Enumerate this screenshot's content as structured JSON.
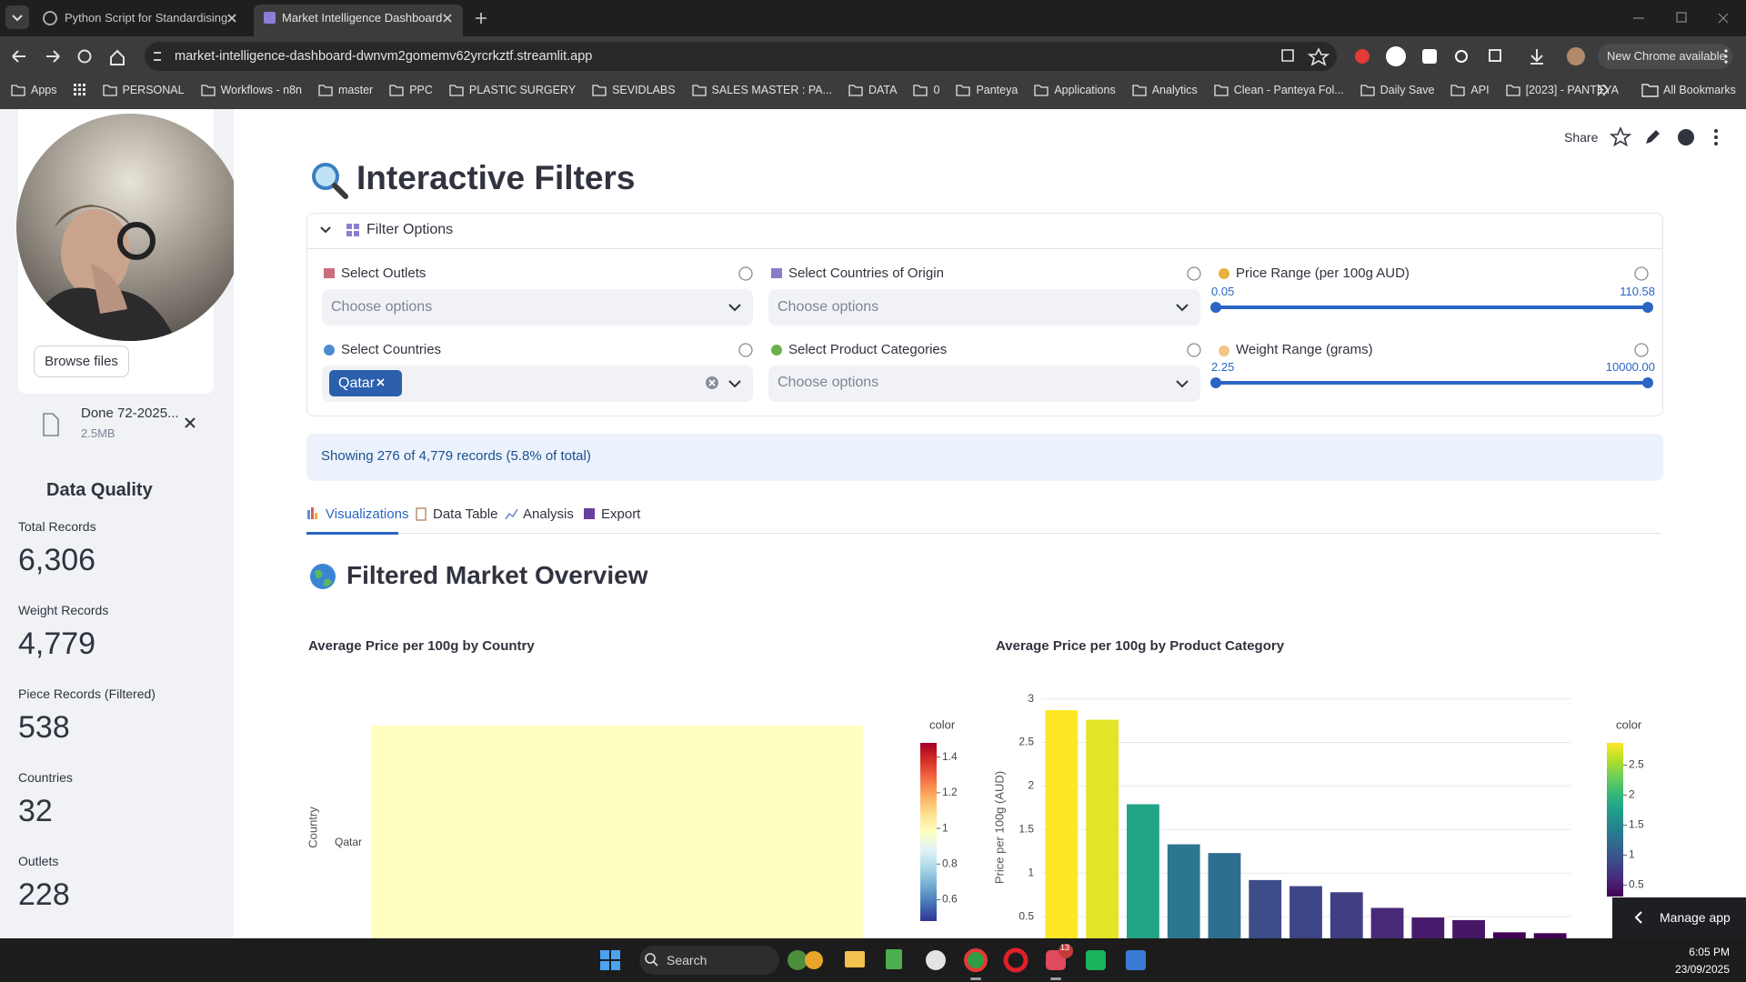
{
  "browser": {
    "tabs": [
      "Python Script for Standardising",
      "Market Intelligence Dashboard"
    ],
    "url": "market-intelligence-dashboard-dwnvm2gomemv62yrcrkztf.streamlit.app",
    "update_button": "New Chrome available",
    "bookmarks": [
      "Apps",
      "PERSONAL",
      "Workflows - n8n",
      "master",
      "PPC",
      "PLASTIC SURGERY",
      "SEVIDLABS",
      "SALES MASTER : PA...",
      "DATA",
      "0",
      "Panteya",
      "Applications",
      "Analytics",
      "Clean - Panteya Fol...",
      "Daily Save",
      "API",
      "[2023] - PANTEYA"
    ],
    "all_bookmarks": "All Bookmarks"
  },
  "sidebar": {
    "upload_button": "Browse files",
    "file": {
      "name": "Done 72-2025...",
      "size": "2.5MB"
    },
    "section_title": "Data Quality",
    "metrics": [
      {
        "label": "Total Records",
        "value": "6,306"
      },
      {
        "label": "Weight Records",
        "value": "4,779"
      },
      {
        "label": "Piece Records (Filtered)",
        "value": "538"
      },
      {
        "label": "Countries",
        "value": "32"
      },
      {
        "label": "Outlets",
        "value": "228"
      }
    ]
  },
  "toolbar": {
    "share": "Share"
  },
  "page": {
    "title": "Interactive Filters",
    "expander": "Filter Options",
    "filters": {
      "outlets": {
        "label": "Select Outlets",
        "placeholder": "Choose options"
      },
      "origins": {
        "label": "Select Countries of Origin",
        "placeholder": "Choose options"
      },
      "price": {
        "label": "Price Range (per 100g AUD)",
        "min": "0.05",
        "max": "110.58"
      },
      "countries": {
        "label": "Select Countries",
        "selected": [
          "Qatar"
        ]
      },
      "categories": {
        "label": "Select Product Categories",
        "placeholder": "Choose options"
      },
      "weight": {
        "label": "Weight Range (grams)",
        "min": "2.25",
        "max": "10000.00"
      }
    },
    "info": "Showing 276 of 4,779 records (5.8% of total)",
    "tabs": [
      "Visualizations",
      "Data Table",
      "Analysis",
      "Export"
    ],
    "section_title": "Filtered Market Overview",
    "charts": [
      {
        "type": "bar",
        "orientation": "h",
        "title": "Average Price per 100g by Country",
        "y_label": "Country",
        "categories": [
          "Qatar"
        ],
        "values": [
          0.98
        ],
        "xlim": [
          0,
          1.05
        ],
        "colorbar": {
          "title": "color",
          "clim": [
            0.48,
            1.48
          ],
          "ticks": [
            0.6,
            0.8,
            1,
            1.2,
            1.4
          ],
          "colorscale": "RdYlBu_r"
        }
      },
      {
        "type": "bar",
        "orientation": "v",
        "title": "Average Price per 100g by Product Category",
        "y_label": "Price per 100g (AUD)",
        "categories": [
          null,
          null,
          null,
          null,
          null,
          null,
          null,
          null,
          null,
          null,
          null,
          null,
          null
        ],
        "values": [
          2.87,
          2.76,
          1.79,
          1.33,
          1.23,
          0.92,
          0.85,
          0.78,
          0.6,
          0.49,
          0.46,
          0.32,
          0.31
        ],
        "ylim": [
          0,
          3.1
        ],
        "yticks": [
          0.5,
          1,
          1.5,
          2,
          2.5,
          3
        ],
        "grid": true,
        "colorbar": {
          "title": "color",
          "clim": [
            0.31,
            2.87
          ],
          "ticks": [
            0.5,
            1,
            1.5,
            2,
            2.5
          ],
          "colorscale": "Viridis"
        }
      }
    ]
  },
  "manage_app": "Manage app",
  "taskbar": {
    "search": "Search",
    "badge": "13",
    "time": "6:05 PM",
    "date": "23/09/2025"
  }
}
